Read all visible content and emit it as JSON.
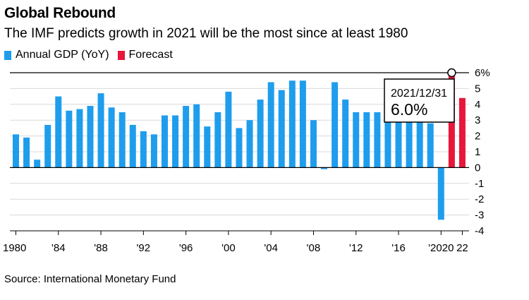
{
  "title": "Global Rebound",
  "subtitle": "The IMF predicts growth in 2021 will be the most since at least 1980",
  "source": "Source: International Monetary Fund",
  "colors": {
    "actual": "#1f9ded",
    "forecast": "#e8163a"
  },
  "legend": [
    {
      "label": "Annual GDP (YoY)",
      "color": "#1f9ded"
    },
    {
      "label": "Forecast",
      "color": "#e8163a"
    }
  ],
  "tooltip": {
    "date": "2021/12/31",
    "value": "6.0%"
  },
  "chart_data": {
    "type": "bar",
    "title": "Global Rebound",
    "subtitle": "The IMF predicts growth in 2021 will be the most since at least 1980",
    "ylim": [
      -4,
      6
    ],
    "yticks": [
      6,
      5,
      4,
      3,
      2,
      1,
      0,
      -1,
      -2,
      -3,
      -4
    ],
    "ytick_labels": [
      "6%",
      "5",
      "4",
      "3",
      "2",
      "1",
      "0",
      "-1",
      "-2",
      "-3",
      "-4"
    ],
    "x": [
      1980,
      1981,
      1982,
      1983,
      1984,
      1985,
      1986,
      1987,
      1988,
      1989,
      1990,
      1991,
      1992,
      1993,
      1994,
      1995,
      1996,
      1997,
      1998,
      1999,
      2000,
      2001,
      2002,
      2003,
      2004,
      2005,
      2006,
      2007,
      2008,
      2009,
      2010,
      2011,
      2012,
      2013,
      2014,
      2015,
      2016,
      2017,
      2018,
      2019,
      2020,
      2021,
      2022
    ],
    "xticks": [
      {
        "year": 1980,
        "label": "1980"
      },
      {
        "year": 1984,
        "label": "'84"
      },
      {
        "year": 1988,
        "label": "'88"
      },
      {
        "year": 1992,
        "label": "'92"
      },
      {
        "year": 1996,
        "label": "'96"
      },
      {
        "year": 2000,
        "label": "'00"
      },
      {
        "year": 2004,
        "label": "'04"
      },
      {
        "year": 2008,
        "label": "'08"
      },
      {
        "year": 2012,
        "label": "'12"
      },
      {
        "year": 2016,
        "label": "'16"
      },
      {
        "year": 2020,
        "label": "'2020"
      },
      {
        "year": 2022,
        "label": "22"
      }
    ],
    "series": [
      {
        "name": "Annual GDP (YoY)",
        "color": "#1f9ded",
        "values": [
          2.1,
          1.9,
          0.5,
          2.7,
          4.5,
          3.6,
          3.7,
          3.9,
          4.7,
          3.8,
          3.5,
          2.7,
          2.3,
          2.1,
          3.3,
          3.3,
          3.9,
          4.0,
          2.6,
          3.5,
          4.8,
          2.5,
          3.0,
          4.3,
          5.4,
          4.9,
          5.5,
          5.5,
          3.0,
          -0.1,
          5.4,
          4.3,
          3.5,
          3.5,
          3.5,
          3.4,
          3.3,
          3.8,
          3.6,
          2.8,
          -3.3,
          null,
          null
        ]
      },
      {
        "name": "Forecast",
        "color": "#e8163a",
        "values": [
          null,
          null,
          null,
          null,
          null,
          null,
          null,
          null,
          null,
          null,
          null,
          null,
          null,
          null,
          null,
          null,
          null,
          null,
          null,
          null,
          null,
          null,
          null,
          null,
          null,
          null,
          null,
          null,
          null,
          null,
          null,
          null,
          null,
          null,
          null,
          null,
          null,
          null,
          null,
          null,
          null,
          6.0,
          4.4
        ]
      }
    ],
    "highlight": {
      "year": 2021,
      "value": 6.0
    }
  }
}
